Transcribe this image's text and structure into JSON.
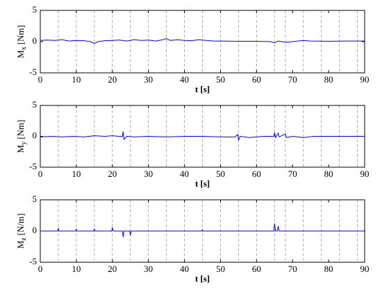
{
  "chart_data": [
    {
      "type": "line",
      "ylabel": {
        "main": "M",
        "sub": "x",
        "unit": "[Nm]"
      },
      "xlabel": "t [s]",
      "x": [
        0,
        2,
        4,
        6,
        8,
        10,
        12,
        14,
        15,
        16,
        18,
        20,
        22,
        24,
        26,
        28,
        30,
        32,
        34,
        35,
        36,
        38,
        40,
        42,
        44,
        46,
        48,
        50,
        55,
        60,
        64,
        65,
        66,
        68,
        70,
        73,
        75,
        80,
        85,
        90
      ],
      "series": [
        {
          "color": "#0000ff",
          "values": [
            0.2,
            0.25,
            0.2,
            0.3,
            0.1,
            0.2,
            0.15,
            0.0,
            -0.3,
            0.0,
            0.15,
            0.2,
            0.25,
            0.1,
            0.3,
            0.2,
            0.25,
            0.1,
            0.3,
            0.5,
            0.2,
            0.3,
            0.2,
            0.15,
            0.3,
            0.2,
            0.1,
            0.1,
            0.05,
            0.05,
            0.0,
            -0.2,
            0.1,
            -0.1,
            0.0,
            0.2,
            0.1,
            0.05,
            0.1,
            0.1
          ]
        }
      ],
      "xlim": [
        0,
        90
      ],
      "xticks": [
        0,
        10,
        20,
        30,
        40,
        50,
        60,
        70,
        80,
        90
      ],
      "ylim": [
        -5,
        5
      ],
      "yticks": [
        -5,
        0,
        5
      ],
      "vlines": [
        5,
        10,
        15,
        20,
        25,
        30,
        35,
        40,
        45,
        50,
        55,
        60,
        65,
        68,
        73,
        78,
        83,
        88
      ]
    },
    {
      "type": "line",
      "ylabel": {
        "main": "M",
        "sub": "y",
        "unit": "[Nm]"
      },
      "xlabel": "t [s]",
      "x": [
        0,
        3,
        6,
        9,
        12,
        15,
        18,
        20,
        22,
        22.8,
        23,
        23.2,
        24,
        26,
        30,
        35,
        40,
        45,
        50,
        54,
        54.8,
        55,
        55.5,
        58,
        62,
        64.8,
        65,
        65.3,
        66,
        66.3,
        68,
        68.3,
        70,
        73,
        76,
        80,
        85,
        90
      ],
      "series": [
        {
          "color": "#0000ff",
          "values": [
            -0.1,
            0.0,
            -0.1,
            0.0,
            -0.1,
            0.1,
            0.0,
            0.1,
            0.0,
            0.0,
            0.8,
            -0.5,
            0.0,
            -0.1,
            0.0,
            -0.1,
            0.0,
            0.0,
            -0.1,
            -0.1,
            0.3,
            -0.6,
            0.0,
            -0.2,
            0.0,
            0.0,
            0.6,
            -0.2,
            0.5,
            -0.1,
            0.4,
            -0.2,
            0.0,
            -0.2,
            0.0,
            0.0,
            0.0,
            0.0
          ]
        }
      ],
      "xlim": [
        0,
        90
      ],
      "xticks": [
        0,
        10,
        20,
        30,
        40,
        50,
        60,
        70,
        80,
        90
      ],
      "ylim": [
        -5,
        5
      ],
      "yticks": [
        -5,
        0,
        5
      ],
      "vlines": [
        5,
        10,
        15,
        20,
        25,
        30,
        35,
        40,
        45,
        50,
        55,
        60,
        65,
        68,
        73,
        78,
        83,
        88
      ]
    },
    {
      "type": "line",
      "ylabel": {
        "main": "M",
        "sub": "z",
        "unit": "[N/m]"
      },
      "xlabel": "t [s]",
      "x": [
        0,
        4.8,
        5,
        5.2,
        9.8,
        10,
        10.2,
        14.8,
        15,
        15.2,
        19.8,
        20,
        20.3,
        22.8,
        23,
        23.2,
        24.8,
        25,
        25.2,
        30,
        40,
        44.8,
        45,
        45.2,
        50,
        60,
        64.8,
        65,
        65.3,
        65.8,
        66,
        66.3,
        70,
        80,
        90
      ],
      "series": [
        {
          "color": "#0000ff",
          "values": [
            0.0,
            0.0,
            0.4,
            0.0,
            0.0,
            0.3,
            0.0,
            0.0,
            0.3,
            0.0,
            0.0,
            0.5,
            0.0,
            0.0,
            -1.0,
            0.0,
            0.0,
            -0.7,
            0.0,
            0.0,
            0.0,
            0.0,
            0.2,
            0.0,
            0.0,
            0.0,
            0.0,
            1.2,
            0.0,
            0.0,
            0.8,
            0.0,
            0.0,
            0.0,
            0.0
          ]
        }
      ],
      "xlim": [
        0,
        90
      ],
      "xticks": [
        0,
        10,
        20,
        30,
        40,
        50,
        60,
        70,
        80,
        90
      ],
      "ylim": [
        -5,
        5
      ],
      "yticks": [
        -5,
        0,
        5
      ],
      "vlines": [
        5,
        10,
        15,
        20,
        25,
        30,
        35,
        40,
        45,
        50,
        55,
        60,
        65,
        68,
        73,
        78,
        83,
        88
      ]
    }
  ]
}
